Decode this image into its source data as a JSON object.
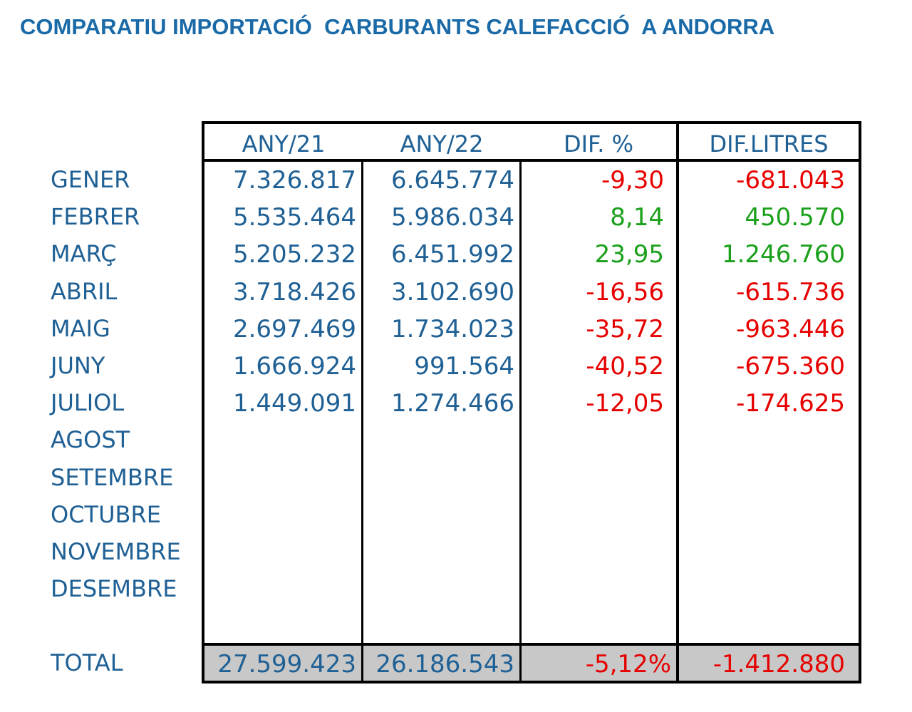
{
  "title": "COMPARATIU IMPORTACIÓ  CARBURANTS CALEFACCIÓ  A ANDORRA",
  "headers": [
    "ANY/21",
    "ANY/22",
    "DIF. %",
    "DIF.LITRES"
  ],
  "months": [
    "GENER",
    "FEBRER",
    "MARÇ",
    "ABRIL",
    "MAIG",
    "JUNY",
    "JULIOL",
    "AGOST",
    "SETEMBRE",
    "OCTUBRE",
    "NOVEMBRE",
    "DESEMBRE"
  ],
  "rows": [
    {
      "any21": "7.326.817",
      "any22": "6.645.774",
      "dif_pct": "-9,30",
      "dif_litres": "-681.043",
      "trend": "negative"
    },
    {
      "any21": "5.535.464",
      "any22": "5.986.034",
      "dif_pct": "8,14",
      "dif_litres": "450.570",
      "trend": "positive"
    },
    {
      "any21": "5.205.232",
      "any22": "6.451.992",
      "dif_pct": "23,95",
      "dif_litres": "1.246.760",
      "trend": "positive"
    },
    {
      "any21": "3.718.426",
      "any22": "3.102.690",
      "dif_pct": "-16,56",
      "dif_litres": "-615.736",
      "trend": "negative"
    },
    {
      "any21": "2.697.469",
      "any22": "1.734.023",
      "dif_pct": "-35,72",
      "dif_litres": "-963.446",
      "trend": "negative"
    },
    {
      "any21": "1.666.924",
      "any22": "991.564",
      "dif_pct": "-40,52",
      "dif_litres": "-675.360",
      "trend": "negative"
    },
    {
      "any21": "1.449.091",
      "any22": "1.274.466",
      "dif_pct": "-12,05",
      "dif_litres": "-174.625",
      "trend": "negative"
    }
  ],
  "total": {
    "label": "TOTAL",
    "any21": "27.599.423",
    "any22": "26.186.543",
    "dif_pct": "-5,12%",
    "dif_litres": "-1.412.880"
  },
  "colors": {
    "title": "#1a6aa8",
    "text": "#1f6095",
    "negative": "#e60000",
    "positive": "#1aa01a",
    "total_bg": "#c8c8c8"
  }
}
